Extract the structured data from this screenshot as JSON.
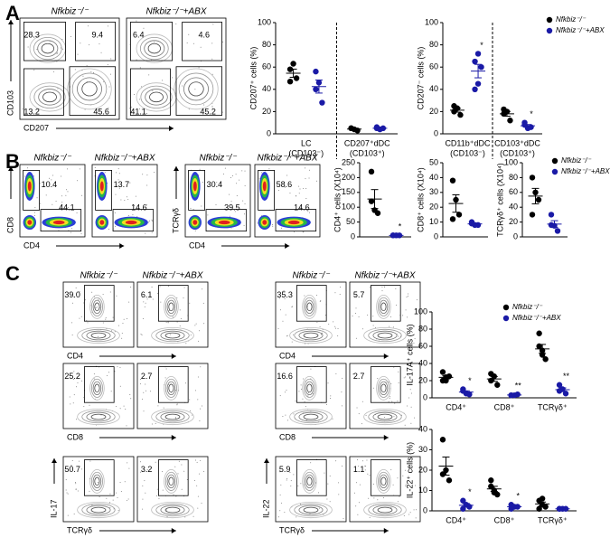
{
  "panels": [
    "A",
    "B",
    "C"
  ],
  "flow_plots": [
    {
      "title": "Nfkbiz⁻/⁻",
      "gates": [
        "28.3",
        "9.4",
        "13.2",
        "45.6"
      ],
      "x_label": "CD207",
      "y_label": "CD103"
    },
    {
      "title": "Nfkbiz⁻/⁻+ABX",
      "gates": [
        "6.4",
        "4.6",
        "41.1",
        "45.2"
      ]
    },
    {
      "title": "Nfkbiz⁻/⁻",
      "gates": [
        "10.4",
        "44.1"
      ],
      "x_label": "CD4",
      "y_label": "CD8"
    },
    {
      "title": "Nfkbiz⁻/⁻+ABX",
      "gates": [
        "13.7",
        "14.6"
      ]
    },
    {
      "title": "Nfkbiz⁻/⁻",
      "gates": [
        "30.4",
        "39.5"
      ],
      "x_label": "CD4",
      "y_label": "TCRγδ"
    },
    {
      "title": "Nfkbiz⁻/⁻+ABX",
      "gates": [
        "58.6",
        "14.6"
      ]
    },
    {
      "title": "Nfkbiz⁻/⁻",
      "gates": [
        "39.0"
      ],
      "x_label": "CD4"
    },
    {
      "title": "Nfkbiz⁻/⁻+ABX",
      "gates": [
        "6.1"
      ]
    },
    {
      "gates": [
        "25.2"
      ],
      "x_label": "CD8"
    },
    {
      "gates": [
        "2.7"
      ]
    },
    {
      "gates": [
        "50.7"
      ],
      "x_label": "TCRγδ",
      "y_label": "IL-17"
    },
    {
      "gates": [
        "3.2"
      ]
    },
    {
      "title": "Nfkbiz⁻/⁻",
      "gates": [
        "35.3"
      ],
      "x_label": "CD4"
    },
    {
      "title": "Nfkbiz⁻/⁻+ABX",
      "gates": [
        "5.7"
      ]
    },
    {
      "gates": [
        "16.6"
      ],
      "x_label": "CD8"
    },
    {
      "gates": [
        "2.7"
      ]
    },
    {
      "gates": [
        "5.9"
      ],
      "x_label": "TCRγδ",
      "y_label": "IL-22"
    },
    {
      "gates": [
        "1.1"
      ]
    }
  ],
  "chart_data": [
    {
      "type": "scatter",
      "y_label": "CD207⁺ cells (%)",
      "categories": [
        "LC",
        "CD207⁺dDC"
      ],
      "category_sublabels": [
        "(CD103⁻)",
        "(CD103⁺)"
      ],
      "ylim": [
        0,
        100
      ],
      "yticks": [
        0,
        20,
        40,
        60,
        80,
        100
      ],
      "divider": true,
      "series": [
        {
          "name": "Nfkbiz⁻/⁻",
          "color": "#000000",
          "values": [
            [
              58,
              63,
              50,
              47
            ],
            [
              5,
              4,
              3,
              5
            ]
          ]
        },
        {
          "name": "Nfkbiz⁻/⁻+ABX",
          "color": "#1a1aa6",
          "values": [
            [
              56,
              46,
              28,
              40
            ],
            [
              5,
              4,
              5,
              6
            ]
          ]
        }
      ]
    },
    {
      "type": "scatter",
      "y_label": "CD207⁻ cells (%)",
      "categories": [
        "CD11b⁺dDC",
        "CD103⁺dDC"
      ],
      "category_sublabels": [
        "(CD103⁻)",
        "(CD103⁺)"
      ],
      "ylim": [
        0,
        100
      ],
      "yticks": [
        0,
        20,
        40,
        60,
        80,
        100
      ],
      "divider": true,
      "legend": "upper right",
      "annotations": [
        "*",
        "*"
      ],
      "series": [
        {
          "name": "Nfkbiz⁻/⁻",
          "color": "#000000",
          "values": [
            [
              20,
              23,
              17,
              25
            ],
            [
              18,
              20,
              12,
              22
            ]
          ]
        },
        {
          "name": "Nfkbiz⁻/⁻+ABX",
          "color": "#1a1aa6",
          "values": [
            [
              40,
              72,
              60,
              65,
              45
            ],
            [
              8,
              5,
              6,
              10
            ]
          ]
        }
      ]
    },
    {
      "type": "scatter",
      "y_label": "CD4⁺ cells (X10⁴)",
      "categories": [
        null
      ],
      "ylim": [
        0,
        250
      ],
      "yticks": [
        0,
        50,
        100,
        150,
        200,
        250
      ],
      "annotations": [
        "*"
      ],
      "series": [
        {
          "name": "Nfkbiz⁻/⁻",
          "color": "#000000",
          "values": [
            [
              220,
              90,
              80,
              120
            ]
          ]
        },
        {
          "name": "Nfkbiz⁻/⁻+ABX",
          "color": "#1a1aa6",
          "values": [
            [
              5,
              5,
              5,
              5
            ]
          ]
        }
      ]
    },
    {
      "type": "scatter",
      "y_label": "CD8⁺ cells (X10⁴)",
      "categories": [
        null
      ],
      "ylim": [
        0,
        50
      ],
      "yticks": [
        0,
        10,
        20,
        30,
        40,
        50
      ],
      "series": [
        {
          "name": "Nfkbiz⁻/⁻",
          "color": "#000000",
          "values": [
            [
              38,
              25,
              15,
              12
            ]
          ]
        },
        {
          "name": "Nfkbiz⁻/⁻+ABX",
          "color": "#1a1aa6",
          "values": [
            [
              10,
              8,
              8,
              9
            ]
          ]
        }
      ]
    },
    {
      "type": "scatter",
      "y_label": "TCRγδ⁺ cells (X10⁴)",
      "categories": [
        null
      ],
      "ylim": [
        0,
        100
      ],
      "yticks": [
        0,
        20,
        40,
        60,
        80,
        100
      ],
      "legend": "upper right",
      "series": [
        {
          "name": "Nfkbiz⁻/⁻",
          "color": "#000000",
          "values": [
            [
              80,
              60,
              50,
              30
            ]
          ]
        },
        {
          "name": "Nfkbiz⁻/⁻+ABX",
          "color": "#1a1aa6",
          "values": [
            [
              30,
              15,
              8,
              16
            ]
          ]
        }
      ]
    },
    {
      "type": "scatter",
      "y_label": "IL-17A⁺ cells (%)",
      "categories": [
        "CD4⁺",
        "CD8⁺",
        "TCRγδ⁺"
      ],
      "ylim": [
        0,
        100
      ],
      "yticks": [
        0,
        20,
        40,
        60,
        80,
        100
      ],
      "legend": "upper right",
      "annotations": [
        "*",
        "**",
        "**"
      ],
      "series": [
        {
          "name": "Nfkbiz⁻/⁻",
          "color": "#000000",
          "values": [
            [
              30,
              20,
              25,
              20,
              24
            ],
            [
              20,
              25,
              15,
              28
            ],
            [
              60,
              50,
              45,
              75,
              55
            ]
          ]
        },
        {
          "name": "Nfkbiz⁻/⁻+ABX",
          "color": "#1a1aa6",
          "values": [
            [
              10,
              5,
              4,
              8
            ],
            [
              3,
              3,
              4,
              3
            ],
            [
              15,
              10,
              5,
              8
            ]
          ]
        }
      ]
    },
    {
      "type": "scatter",
      "y_label": "IL-22⁺ cells (%)",
      "categories": [
        "CD4⁺",
        "CD8⁺",
        "TCRγδ⁺"
      ],
      "ylim": [
        0,
        40
      ],
      "yticks": [
        0,
        10,
        20,
        30,
        40
      ],
      "annotations": [
        "*",
        "*",
        null
      ],
      "series": [
        {
          "name": "Nfkbiz⁻/⁻",
          "color": "#000000",
          "values": [
            [
              35,
              20,
              15,
              18
            ],
            [
              15,
              10,
              8,
              12,
              9
            ],
            [
              5,
              3,
              2,
              1,
              6
            ]
          ]
        },
        {
          "name": "Nfkbiz⁻/⁻+ABX",
          "color": "#1a1aa6",
          "values": [
            [
              5,
              3,
              2,
              1
            ],
            [
              3,
              2,
              2,
              1
            ],
            [
              1,
              1,
              1,
              1
            ]
          ]
        }
      ]
    }
  ]
}
